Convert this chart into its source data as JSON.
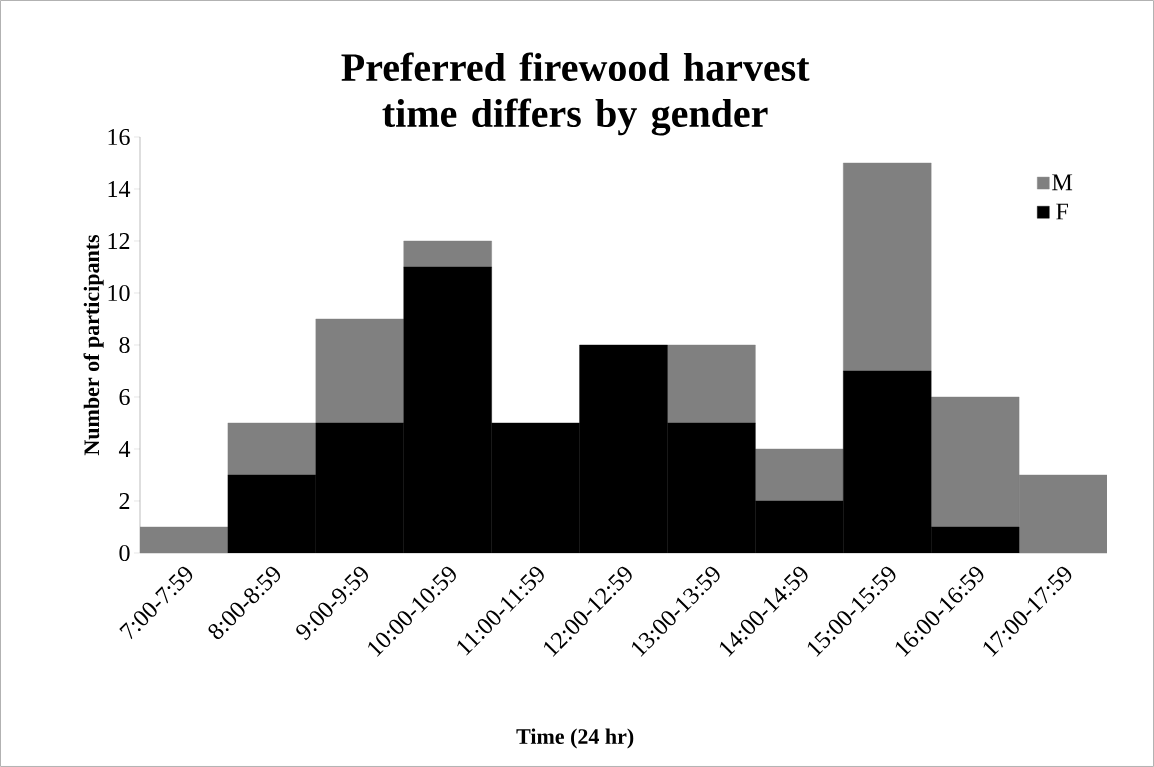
{
  "chart_data": {
    "type": "bar",
    "title": "Preferred firewood harvest time differs by gender",
    "xlabel": "Time (24 hr)",
    "ylabel": "Number of participants",
    "categories": [
      "7:00-7:59",
      "8:00-8:59",
      "9:00-9:59",
      "10:00-10:59",
      "11:00-11:59",
      "12:00-12:59",
      "13:00-13:59",
      "14:00-14:59",
      "15:00-15:59",
      "16:00-16:59",
      "17:00-17:59"
    ],
    "series": [
      {
        "name": "F",
        "color": "#000000",
        "values": [
          0,
          3,
          5,
          11,
          5,
          8,
          5,
          2,
          7,
          1,
          0
        ]
      },
      {
        "name": "M",
        "color": "#808080",
        "values": [
          1,
          2,
          4,
          1,
          0,
          0,
          3,
          2,
          8,
          5,
          3
        ]
      }
    ],
    "stacked": true,
    "ylim": [
      0,
      16
    ],
    "yticks": [
      0,
      2,
      4,
      6,
      8,
      10,
      12,
      14,
      16
    ],
    "grid": false,
    "legend": "top right"
  }
}
